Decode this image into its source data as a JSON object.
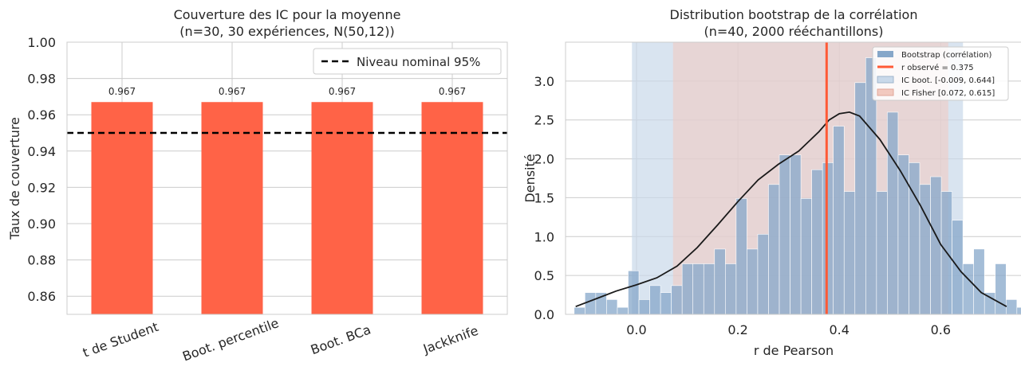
{
  "colors": {
    "bar": "#ff6347",
    "nominal_line": "#000000",
    "hist_fill": "#86a7c9",
    "observed_line": "#ff5a36",
    "ic_boot": "#c9d9ea",
    "ic_fisher": "#f2c9bf",
    "kde": "#1a1a1a",
    "grid": "#cccccc",
    "axes": "#cccccc"
  },
  "chart_data": [
    {
      "type": "bar",
      "title": "Couverture des IC pour la moyenne",
      "subtitle": "(n=30, 30 expériences, N(50,12))",
      "xlabel": "",
      "ylabel": "Taux de couverture",
      "categories": [
        "t de Student",
        "Boot. percentile",
        "Boot. BCa",
        "Jackknife"
      ],
      "values": [
        0.967,
        0.967,
        0.967,
        0.967
      ],
      "value_labels": [
        "0.967",
        "0.967",
        "0.967",
        "0.967"
      ],
      "ylim": [
        0.85,
        1.0
      ],
      "yticks": [
        0.86,
        0.88,
        0.9,
        0.92,
        0.94,
        0.96,
        0.98,
        1.0
      ],
      "ytick_labels": [
        "0.86",
        "0.88",
        "0.90",
        "0.92",
        "0.94",
        "0.96",
        "0.98",
        "1.00"
      ],
      "reference_line": {
        "value": 0.95,
        "label": "Niveau nominal 95%",
        "style": "dashed"
      },
      "grid": true,
      "legend": "top-right"
    },
    {
      "type": "histogram",
      "title": "Distribution bootstrap de la corrélation",
      "subtitle": "(n=40, 2000 rééchantillons)",
      "xlabel": "r de Pearson",
      "ylabel": "Densité",
      "xlim": [
        -0.14,
        0.76
      ],
      "ylim": [
        0,
        3.5
      ],
      "xticks": [
        0.0,
        0.2,
        0.4,
        0.6
      ],
      "xtick_labels": [
        "0.0",
        "0.2",
        "0.4",
        "0.6"
      ],
      "yticks": [
        0.0,
        0.5,
        1.0,
        1.5,
        2.0,
        2.5,
        3.0
      ],
      "ytick_labels": [
        "0.0",
        "0.5",
        "1.0",
        "1.5",
        "2.0",
        "2.5",
        "3.0"
      ],
      "bin_start": -0.123,
      "bin_width": 0.0213,
      "bin_heights": [
        0.09,
        0.28,
        0.28,
        0.19,
        0.09,
        0.56,
        0.19,
        0.37,
        0.28,
        0.37,
        0.65,
        0.65,
        0.65,
        0.84,
        0.65,
        1.49,
        0.84,
        1.03,
        1.67,
        2.05,
        2.05,
        1.49,
        1.86,
        1.95,
        2.42,
        1.58,
        2.98,
        3.3,
        1.58,
        2.6,
        2.05,
        1.95,
        1.67,
        1.77,
        1.58,
        1.21,
        0.65,
        0.84,
        0.28,
        0.65,
        0.19,
        0.09
      ],
      "kde": {
        "x": [
          -0.12,
          -0.08,
          -0.04,
          0.0,
          0.04,
          0.08,
          0.12,
          0.16,
          0.2,
          0.24,
          0.28,
          0.32,
          0.36,
          0.38,
          0.4,
          0.42,
          0.44,
          0.48,
          0.52,
          0.56,
          0.6,
          0.64,
          0.68,
          0.73
        ],
        "y": [
          0.1,
          0.2,
          0.3,
          0.38,
          0.47,
          0.62,
          0.86,
          1.15,
          1.45,
          1.73,
          1.93,
          2.1,
          2.35,
          2.5,
          2.58,
          2.6,
          2.55,
          2.25,
          1.85,
          1.4,
          0.9,
          0.55,
          0.28,
          0.1
        ]
      },
      "observed_r": 0.375,
      "ic_boot": [
        -0.009,
        0.644
      ],
      "ic_fisher": [
        0.072,
        0.615
      ],
      "legend_entries": [
        "Bootstrap (corrélation)",
        "r observé = 0.375",
        "IC boot. [-0.009, 0.644]",
        "IC Fisher [0.072, 0.615]"
      ],
      "grid": true,
      "legend": "top-right"
    }
  ]
}
